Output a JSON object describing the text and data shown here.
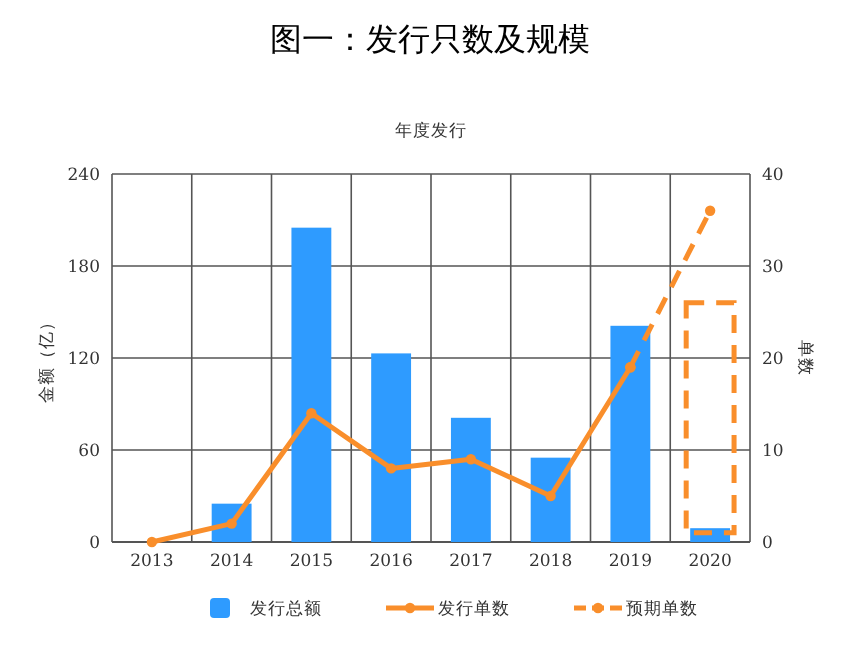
{
  "chart_data": {
    "type": "bar",
    "title": "图一：发行只数及规模",
    "subtitle": "年度发行",
    "ylabel": "金额（亿）",
    "y2label": "单数",
    "categories": [
      "2013",
      "2014",
      "2015",
      "2016",
      "2017",
      "2018",
      "2019",
      "2020"
    ],
    "series": [
      {
        "name": "发行总额",
        "color": "#2e9bff",
        "values": [
          0,
          25,
          205,
          123,
          81,
          55,
          141,
          9
        ]
      },
      {
        "name": "发行单数",
        "type": "line",
        "axis": "y2",
        "color": "#f98e2b",
        "marker": "circle",
        "line_style": "solid",
        "values": [
          0,
          2,
          14,
          8,
          9,
          5,
          19,
          null
        ]
      },
      {
        "name": "预期单数",
        "type": "line",
        "axis": "y2",
        "color": "#f98e2b",
        "marker": "circle",
        "line_style": "dashed",
        "values": [
          null,
          null,
          null,
          null,
          null,
          null,
          19,
          36
        ]
      }
    ],
    "ylim": [
      0,
      240
    ],
    "yticks": [
      0,
      60,
      120,
      180,
      240
    ],
    "y2lim": [
      0,
      40
    ],
    "y2ticks": [
      0,
      10,
      20,
      30,
      40
    ],
    "grid": true,
    "legend": "bottom"
  }
}
